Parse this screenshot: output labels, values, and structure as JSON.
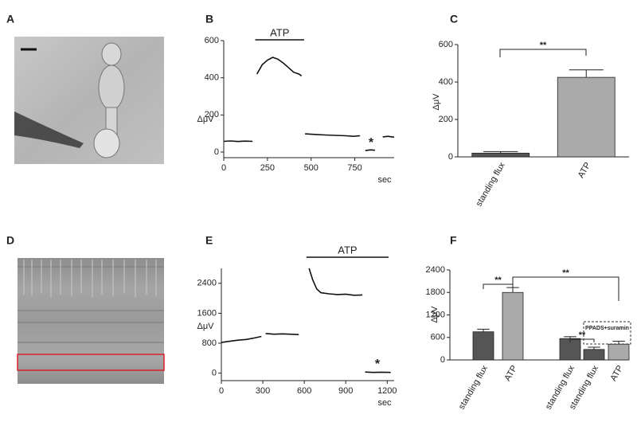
{
  "panel_labels": [
    "A",
    "B",
    "C",
    "D",
    "E",
    "F"
  ],
  "chart_data": [
    {
      "type": "line",
      "ylabel": "ΔμV",
      "xlabel": "sec",
      "color": "#111111",
      "x": [
        0,
        40,
        80,
        120,
        165,
        178,
        190,
        220,
        250,
        280,
        310,
        340,
        370,
        400,
        430,
        445,
        455,
        465,
        520,
        580,
        640,
        700,
        740,
        780,
        795,
        810,
        840,
        865,
        888,
        910,
        940,
        975
      ],
      "values": [
        58,
        60,
        57,
        59,
        58,
        null,
        420,
        470,
        495,
        510,
        500,
        480,
        455,
        430,
        420,
        410,
        null,
        98,
        95,
        92,
        90,
        88,
        85,
        88,
        null,
        8,
        12,
        10,
        null,
        82,
        85,
        80
      ],
      "xlim": [
        0,
        975
      ],
      "ylim": [
        -30,
        600
      ],
      "xticks": [
        0,
        250,
        500,
        750
      ],
      "yticks": [
        0,
        200,
        400,
        600
      ],
      "stimulus": {
        "label": "ATP",
        "x": [
          180,
          460
        ]
      },
      "marker": "*"
    },
    {
      "type": "bar",
      "ylabel": "ΔμV",
      "categories": [
        "standing flux",
        "ATP"
      ],
      "values": [
        20,
        425
      ],
      "errors": [
        8,
        40
      ],
      "colors": [
        "#555555",
        "#aaaaaa"
      ],
      "ylim": [
        0,
        600
      ],
      "yticks": [
        0,
        200,
        400,
        600
      ],
      "significance": [
        "**"
      ]
    },
    {
      "type": "line",
      "ylabel": "ΔμV",
      "xlabel": "sec",
      "color": "#111111",
      "x": [
        0,
        60,
        120,
        180,
        240,
        290,
        305,
        320,
        380,
        440,
        500,
        560,
        600,
        635,
        660,
        690,
        720,
        780,
        840,
        900,
        960,
        1020,
        1030,
        1040,
        1100,
        1160,
        1225
      ],
      "values": [
        820,
        850,
        880,
        900,
        940,
        980,
        null,
        1060,
        1040,
        1050,
        1040,
        1030,
        null,
        2800,
        2500,
        2250,
        2150,
        2120,
        2100,
        2110,
        2080,
        2090,
        null,
        30,
        20,
        25,
        20
      ],
      "xlim": [
        0,
        1250
      ],
      "ylim": [
        -200,
        2800
      ],
      "xticks": [
        0,
        300,
        600,
        900,
        1200
      ],
      "yticks": [
        0,
        800,
        1600,
        2400
      ],
      "stimulus": {
        "label": "ATP",
        "x": [
          615,
          1210
        ]
      },
      "marker": "*"
    },
    {
      "type": "bar",
      "ylabel": "ΔμV",
      "categories": [
        "standing flux",
        "ATP",
        "standing flux",
        "standing flux",
        "ATP"
      ],
      "values": [
        750,
        1800,
        570,
        280,
        420
      ],
      "errors": [
        70,
        130,
        50,
        60,
        80
      ],
      "colors": [
        "#555555",
        "#aaaaaa",
        "#555555",
        "#555555",
        "#aaaaaa"
      ],
      "ylim": [
        0,
        2400
      ],
      "yticks": [
        0,
        600,
        1200,
        1800,
        2400
      ],
      "significance": [
        "**",
        "**",
        "**"
      ],
      "box_label": "PPADS+suramin"
    }
  ]
}
